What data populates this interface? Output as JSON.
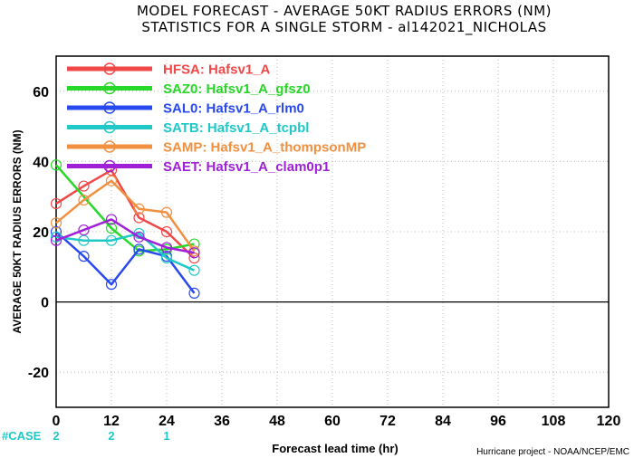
{
  "chart_data": {
    "type": "line",
    "title": "MODEL FORECAST - AVERAGE 50KT RADIUS ERRORS (NM)",
    "subtitle": "STATISTICS FOR A SINGLE STORM - al142021_NICHOLAS",
    "xlabel": "Forecast lead time (hr)",
    "ylabel": "AVERAGE 50KT RADIUS ERRORS (NM)",
    "xlim": [
      0,
      120
    ],
    "ylim": [
      -30,
      70
    ],
    "xticks": [
      0,
      12,
      24,
      36,
      48,
      60,
      72,
      84,
      96,
      108,
      120
    ],
    "yticks": [
      -20,
      0,
      20,
      40,
      60
    ],
    "grid": true,
    "legend_position": "top-left",
    "x": [
      0,
      6,
      12,
      18,
      24,
      30
    ],
    "series": [
      {
        "name": "HFSA:  Hafsv1_A",
        "color": "#f04848",
        "values": [
          28,
          33,
          37.5,
          24,
          20,
          12.5
        ]
      },
      {
        "name": "SAZ0:  Hafsv1_A_gfsz0",
        "color": "#28d828",
        "values": [
          39,
          null,
          21,
          14.5,
          15,
          16.5
        ]
      },
      {
        "name": "SAL0:  Hafsv1_A_rlm0",
        "color": "#2848f0",
        "values": [
          20,
          13,
          5,
          15,
          13,
          2.5
        ]
      },
      {
        "name": "SATB:  Hafsv1_A_tcpbl",
        "color": "#20c8c8",
        "values": [
          18.5,
          17.5,
          17.5,
          19.5,
          12.5,
          9
        ]
      },
      {
        "name": "SAMP:  Hafsv1_A_thompsonMP",
        "color": "#f09040",
        "values": [
          22.5,
          29,
          34.5,
          26.5,
          25.5,
          14.5
        ]
      },
      {
        "name": "SAET:  Hafsv1_A_clam0p1",
        "color": "#a020d8",
        "values": [
          17.5,
          20.5,
          23.5,
          18.5,
          15.5,
          14
        ]
      }
    ],
    "cases": {
      "label": "#CASE",
      "x": [
        0,
        12,
        24
      ],
      "values": [
        "2",
        "2",
        "1"
      ]
    },
    "credit": "Hurricane project - NOAA/NCEP/EMC"
  }
}
